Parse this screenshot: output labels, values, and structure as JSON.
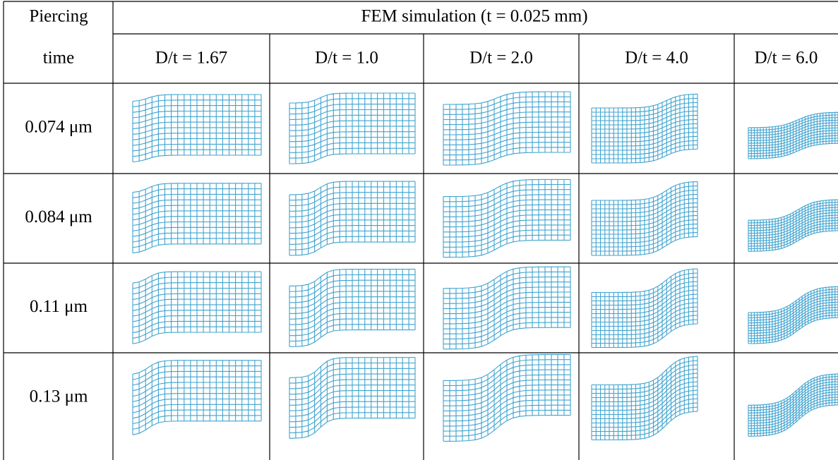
{
  "header": {
    "corner": [
      "Piercing",
      "time"
    ],
    "span_title": "FEM simulation (t = 0.025 mm)",
    "columns": [
      "D/t = 1.67",
      "D/t = 1.0",
      "D/t = 2.0",
      "D/t = 4.0",
      "D/t = 6.0"
    ]
  },
  "rows": [
    {
      "label": "0.074 μm"
    },
    {
      "label": "0.084 μm"
    },
    {
      "label": "0.11 μm"
    },
    {
      "label": "0.13 μm"
    }
  ]
}
